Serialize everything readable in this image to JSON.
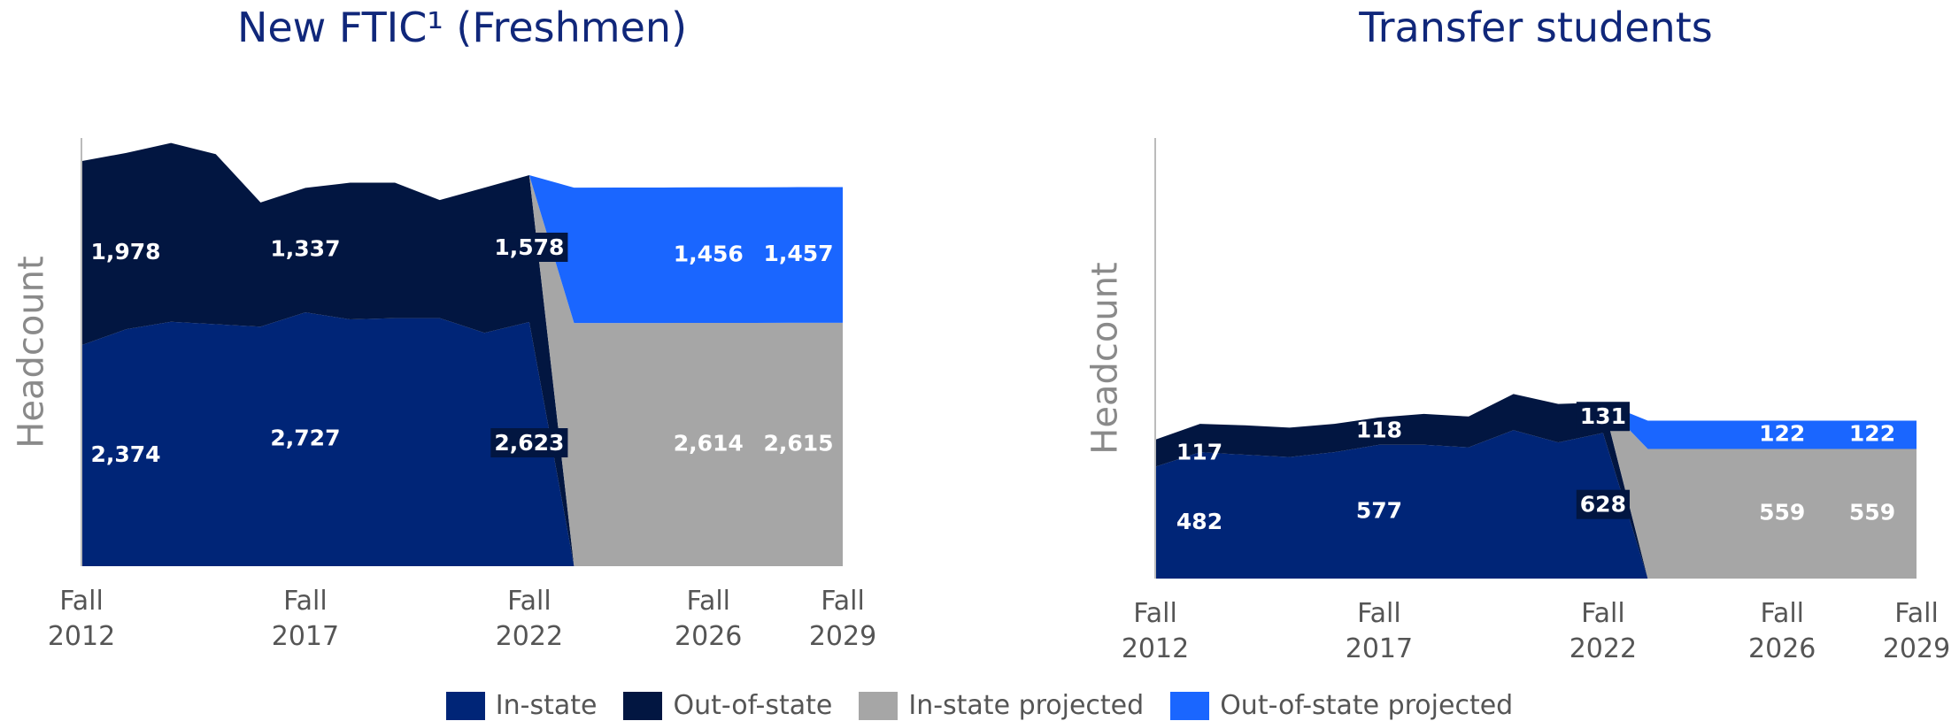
{
  "chart_data": [
    {
      "type": "area",
      "title": "New FTIC¹ (Freshmen)",
      "y_label": "Headcount",
      "x": [
        2012,
        2013,
        2014,
        2015,
        2016,
        2017,
        2018,
        2019,
        2020,
        2021,
        2022,
        2023,
        2024,
        2025,
        2026,
        2027,
        2028,
        2029
      ],
      "xlim": [
        2012,
        2029
      ],
      "xticks": [
        {
          "value": 2012,
          "label": "Fall 2012"
        },
        {
          "value": 2017,
          "label": "Fall 2017"
        },
        {
          "value": 2022,
          "label": "Fall 2022"
        },
        {
          "value": 2026,
          "label": "Fall 2026"
        },
        {
          "value": 2029,
          "label": "Fall 2029"
        }
      ],
      "ylim": [
        0,
        4600
      ],
      "stacked": true,
      "series": [
        {
          "name": "In-state",
          "color": "#002577",
          "values": [
            2374,
            2546,
            2625,
            2599,
            2573,
            2727,
            2652,
            2665,
            2665,
            2507,
            2623,
            0,
            null,
            null,
            null,
            null,
            null,
            null
          ],
          "value_labels": [
            "2,374",
            null,
            null,
            null,
            null,
            "2,727",
            null,
            null,
            null,
            null,
            "2,623",
            null,
            null,
            null,
            null,
            null,
            null,
            null
          ]
        },
        {
          "name": "Out-of-state",
          "color": "#021641",
          "values": [
            1978,
            1894,
            1922,
            1828,
            1334,
            1337,
            1468,
            1455,
            1268,
            1560,
            1578,
            0,
            null,
            null,
            null,
            null,
            null,
            null
          ],
          "value_labels": [
            "1,978",
            null,
            null,
            null,
            null,
            "1,337",
            null,
            null,
            null,
            null,
            "1,578",
            null,
            null,
            null,
            null,
            null,
            null,
            null
          ]
        },
        {
          "name": "In-state projected",
          "color": "#a6a6a6",
          "values": [
            null,
            null,
            null,
            null,
            null,
            null,
            null,
            null,
            null,
            null,
            0,
            2612,
            2613,
            2613,
            2614,
            2614,
            2615,
            2615
          ],
          "value_labels": [
            null,
            null,
            null,
            null,
            null,
            null,
            null,
            null,
            null,
            null,
            null,
            null,
            null,
            null,
            "2,614",
            null,
            null,
            "2,615"
          ]
        },
        {
          "name": "Out-of-state projected",
          "color": "#1a66ff",
          "values": [
            null,
            null,
            null,
            null,
            null,
            null,
            null,
            null,
            null,
            null,
            0,
            1454,
            1455,
            1455,
            1456,
            1456,
            1457,
            1457
          ],
          "value_labels": [
            null,
            null,
            null,
            null,
            null,
            null,
            null,
            null,
            null,
            null,
            null,
            null,
            null,
            null,
            "1,456",
            null,
            null,
            "1,457"
          ]
        }
      ]
    },
    {
      "type": "area",
      "title": "Transfer students",
      "y_label": "Headcount",
      "x": [
        2012,
        2013,
        2014,
        2015,
        2016,
        2017,
        2018,
        2019,
        2020,
        2021,
        2022,
        2023,
        2024,
        2025,
        2026,
        2027,
        2028,
        2029
      ],
      "xlim": [
        2012,
        2029
      ],
      "xticks": [
        {
          "value": 2012,
          "label": "Fall 2012"
        },
        {
          "value": 2017,
          "label": "Fall 2017"
        },
        {
          "value": 2022,
          "label": "Fall 2022"
        },
        {
          "value": 2026,
          "label": "Fall 2026"
        },
        {
          "value": 2029,
          "label": "Fall 2029"
        }
      ],
      "ylim": [
        0,
        1900
      ],
      "stacked": true,
      "series": [
        {
          "name": "In-state",
          "color": "#002577",
          "values": [
            482,
            545,
            534,
            524,
            545,
            577,
            577,
            566,
            640,
            587,
            628,
            0,
            null,
            null,
            null,
            null,
            null,
            null
          ],
          "value_labels": [
            "482",
            null,
            null,
            null,
            null,
            "577",
            null,
            null,
            null,
            null,
            "628",
            null,
            null,
            null,
            null,
            null,
            null,
            null
          ]
        },
        {
          "name": "Out-of-state",
          "color": "#021641",
          "values": [
            117,
            122,
            127,
            127,
            122,
            118,
            133,
            133,
            156,
            166,
            131,
            0,
            null,
            null,
            null,
            null,
            null,
            null
          ],
          "value_labels": [
            "117",
            null,
            null,
            null,
            null,
            "118",
            null,
            null,
            null,
            null,
            "131",
            null,
            null,
            null,
            null,
            null,
            null,
            null
          ]
        },
        {
          "name": "In-state projected",
          "color": "#a6a6a6",
          "values": [
            null,
            null,
            null,
            null,
            null,
            null,
            null,
            null,
            null,
            null,
            0,
            559,
            559,
            559,
            559,
            559,
            559,
            559
          ],
          "value_labels": [
            null,
            null,
            null,
            null,
            null,
            null,
            null,
            null,
            null,
            null,
            null,
            null,
            null,
            null,
            "559",
            null,
            null,
            "559"
          ]
        },
        {
          "name": "Out-of-state projected",
          "color": "#1a66ff",
          "values": [
            null,
            null,
            null,
            null,
            null,
            null,
            null,
            null,
            null,
            null,
            0,
            122,
            122,
            122,
            122,
            122,
            122,
            122
          ],
          "value_labels": [
            null,
            null,
            null,
            null,
            null,
            null,
            null,
            null,
            null,
            null,
            null,
            null,
            null,
            null,
            "122",
            null,
            null,
            "122"
          ]
        }
      ]
    }
  ]
}
